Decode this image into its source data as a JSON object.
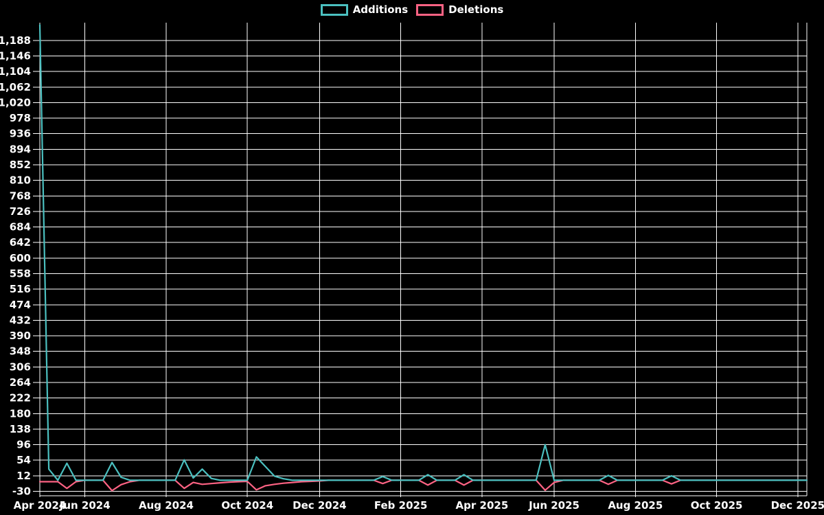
{
  "chart_data": {
    "type": "line",
    "title": "",
    "background_color": "#000000",
    "grid_color": "#ffffff",
    "text_color": "#ffffff",
    "grid": true,
    "legend_position": "top-center",
    "legend": [
      {
        "label": "Additions",
        "color": "#4bc0c0"
      },
      {
        "label": "Deletions",
        "color": "#ff6384"
      }
    ],
    "x_axis": {
      "unit": "week",
      "num_points": 86,
      "ticks": [
        {
          "label": "Apr 2024",
          "week": 0
        },
        {
          "label": "Jun 2024",
          "week": 5
        },
        {
          "label": "Aug 2024",
          "week": 14
        },
        {
          "label": "Oct 2024",
          "week": 23
        },
        {
          "label": "Dec 2024",
          "week": 31
        },
        {
          "label": "Feb 2025",
          "week": 40
        },
        {
          "label": "Apr 2025",
          "week": 49
        },
        {
          "label": "Jun 2025",
          "week": 57
        },
        {
          "label": "Aug 2025",
          "week": 66
        },
        {
          "label": "Oct 2025",
          "week": 75
        },
        {
          "label": "Dec 2025",
          "week": 84
        }
      ]
    },
    "y_axis": {
      "ylim": [
        -42,
        1236
      ],
      "tick_values": [
        -30,
        12,
        54,
        96,
        138,
        180,
        222,
        264,
        306,
        348,
        390,
        432,
        474,
        516,
        558,
        600,
        642,
        684,
        726,
        768,
        810,
        852,
        894,
        936,
        978,
        1020,
        1062,
        1104,
        1146,
        1188
      ],
      "tick_labels": [
        "-30",
        "12",
        "54",
        "96",
        "138",
        "180",
        "222",
        "264",
        "306",
        "348",
        "390",
        "432",
        "474",
        "516",
        "558",
        "600",
        "642",
        "684",
        "726",
        "768",
        "810",
        "852",
        "894",
        "936",
        "978",
        "1,020",
        "1,062",
        "1,104",
        "1,146",
        "1,188"
      ]
    },
    "series": [
      {
        "name": "Additions",
        "color": "#4bc0c0",
        "values": [
          1230,
          30,
          0,
          46,
          0,
          0,
          0,
          0,
          48,
          8,
          0,
          0,
          0,
          0,
          0,
          0,
          55,
          6,
          30,
          5,
          0,
          0,
          0,
          0,
          63,
          37,
          11,
          4,
          0,
          0,
          0,
          0,
          0,
          0,
          0,
          0,
          0,
          0,
          10,
          0,
          0,
          0,
          0,
          15,
          0,
          0,
          0,
          15,
          0,
          0,
          0,
          0,
          0,
          0,
          0,
          0,
          96,
          0,
          0,
          0,
          0,
          0,
          0,
          13,
          0,
          0,
          0,
          0,
          0,
          0,
          12,
          0,
          0,
          0,
          0,
          0,
          0,
          0,
          0,
          0,
          0,
          0,
          0,
          0,
          0,
          0
        ]
      },
      {
        "name": "Deletions",
        "color": "#ff6384",
        "values": [
          -4,
          -4,
          -4,
          -22,
          -4,
          0,
          0,
          0,
          -28,
          -12,
          -4,
          0,
          0,
          0,
          0,
          0,
          -22,
          -6,
          -11,
          -9,
          -7,
          -5,
          -4,
          -3,
          -26,
          -15,
          -11,
          -8,
          -6,
          -4,
          -3,
          -2,
          0,
          0,
          0,
          0,
          0,
          0,
          -9,
          0,
          0,
          0,
          0,
          -13,
          0,
          0,
          0,
          -13,
          0,
          0,
          0,
          0,
          0,
          0,
          0,
          0,
          -27,
          -6,
          0,
          0,
          0,
          0,
          0,
          -11,
          0,
          0,
          0,
          0,
          0,
          0,
          -10,
          0,
          0,
          0,
          0,
          0,
          0,
          0,
          0,
          0,
          0,
          0,
          0,
          0,
          0,
          0
        ]
      }
    ]
  }
}
